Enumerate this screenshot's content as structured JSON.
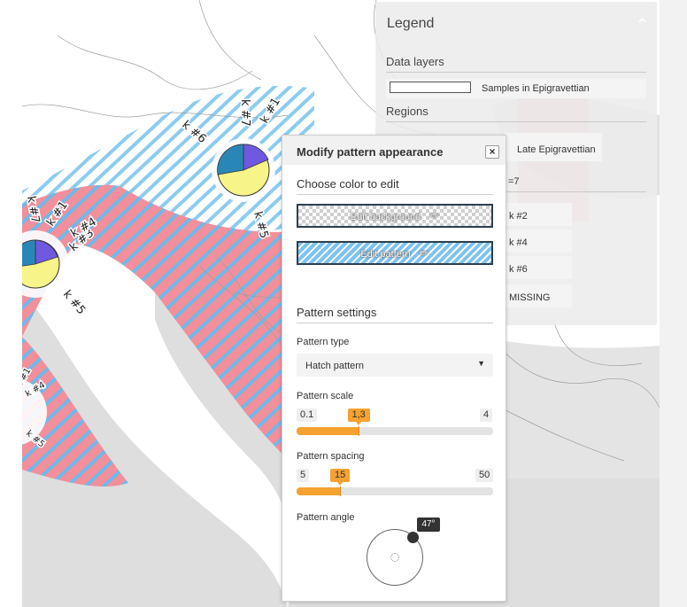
{
  "map": {
    "pie_labels": [
      {
        "text": "k #7"
      },
      {
        "text": "k #1"
      },
      {
        "text": "k #6"
      },
      {
        "text": "k #5"
      },
      {
        "text": "k #7"
      },
      {
        "text": "k #1"
      },
      {
        "text": "k #3"
      },
      {
        "text": "k #4"
      },
      {
        "text": "k #5"
      },
      {
        "text": "k #1"
      },
      {
        "text": "k #4"
      },
      {
        "text": "k #5"
      }
    ],
    "colors": {
      "pink": "#f28f9b",
      "blue": "#6fb9ea",
      "purple": "#6f59e0",
      "yellow": "#f7f58a",
      "teal": "#2b86b8"
    }
  },
  "legend": {
    "title": "Legend",
    "data_layers_heading": "Data layers",
    "layer_label": "Samples in Epigravettian",
    "regions_heading": "Regions",
    "region_label": "Late Epigravettian",
    "k_label": "=7",
    "cluster_items": [
      "k #2",
      "k #4",
      "k #6",
      "MISSING"
    ]
  },
  "dialog": {
    "title": "Modify pattern appearance",
    "close_label": "×",
    "choose_color_heading": "Choose color to edit",
    "edit_background_label": "Edit background",
    "edit_pattern_label": "Edit pattern",
    "pattern_settings_heading": "Pattern settings",
    "pattern_type_label": "Pattern type",
    "pattern_type_value": "Hatch pattern",
    "scale": {
      "label": "Pattern scale",
      "min": "0.1",
      "max": "4",
      "value": "1,3",
      "fraction": 0.3158
    },
    "spacing": {
      "label": "Pattern spacing",
      "min": "5",
      "max": "50",
      "value": "15",
      "fraction": 0.2222
    },
    "angle": {
      "label": "Pattern angle",
      "value": "47°"
    }
  }
}
